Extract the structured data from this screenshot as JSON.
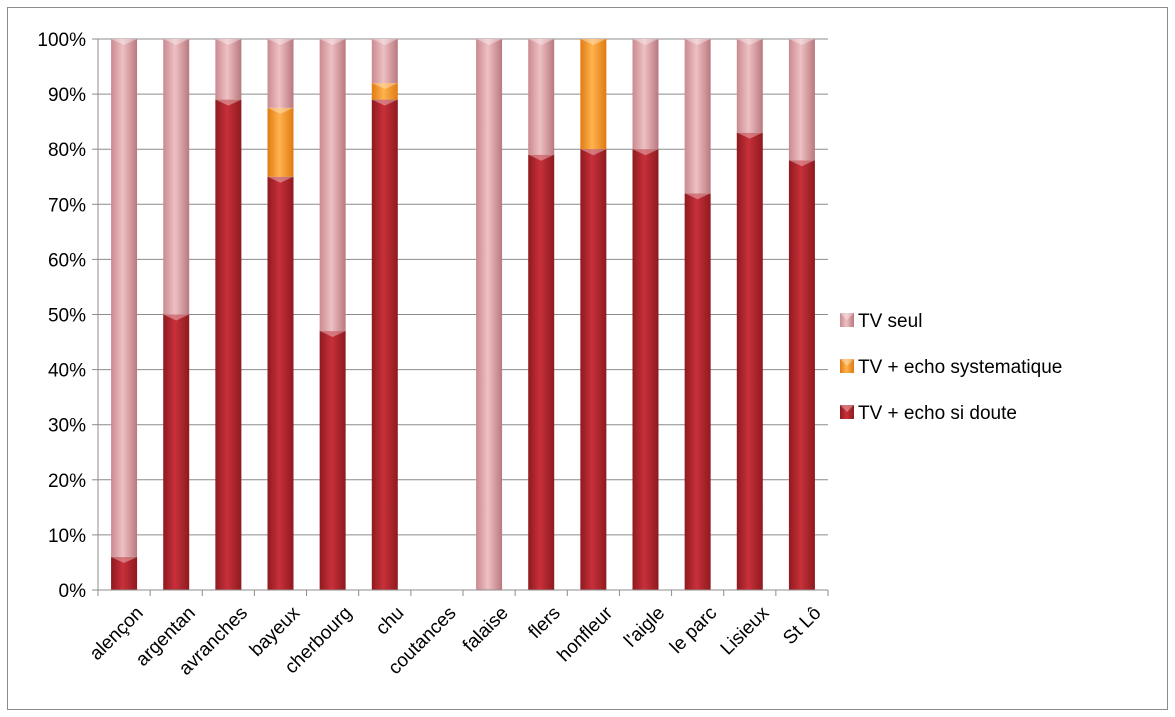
{
  "chart_data": {
    "type": "bar",
    "stacked": true,
    "percent_axis": true,
    "categories": [
      "alençon",
      "argentan",
      "avranches",
      "bayeux",
      "cherbourg",
      "chu",
      "coutances",
      "falaise",
      "flers",
      "honfleur",
      "l'aigle",
      "le parc",
      "Lisieux",
      "St Lô"
    ],
    "series": [
      {
        "name": "TV + echo si doute",
        "color": "#b4232b",
        "values": [
          6,
          50,
          89,
          75,
          47,
          89,
          0,
          0,
          79,
          80,
          80,
          72,
          83,
          78
        ]
      },
      {
        "name": "TV + echo systematique",
        "color": "#f39a2c",
        "values": [
          0,
          0,
          0,
          12.5,
          0,
          3,
          0,
          0,
          0,
          20,
          0,
          0,
          0,
          0
        ]
      },
      {
        "name": "TV seul",
        "color": "#dca6aa",
        "values": [
          94,
          50,
          11,
          12.5,
          53,
          8,
          0,
          100,
          21,
          0,
          20,
          28,
          17,
          22
        ]
      }
    ],
    "ylim": [
      0,
      100
    ],
    "yticks": [
      "0%",
      "10%",
      "20%",
      "30%",
      "40%",
      "50%",
      "60%",
      "70%",
      "80%",
      "90%",
      "100%"
    ],
    "legend_position": "right",
    "legend": [
      "TV seul",
      "TV + echo systematique",
      "TV + echo si doute"
    ],
    "grid": true
  }
}
